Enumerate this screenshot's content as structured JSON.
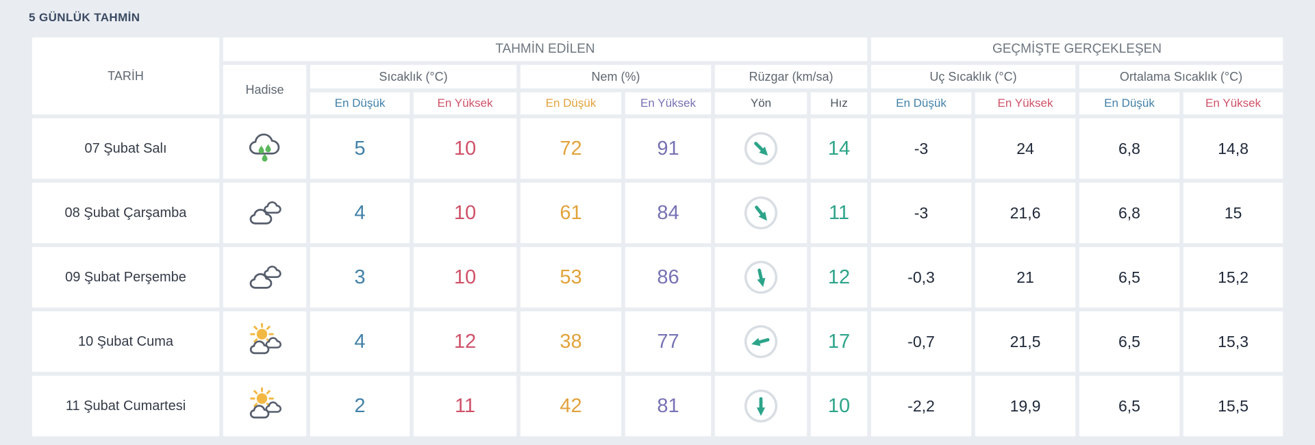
{
  "page": {
    "title": "5 GÜNLÜK TAHMİN",
    "background_color": "#e9edf2"
  },
  "table": {
    "headers": {
      "date": "TARİH",
      "predicted_group": "TAHMİN EDİLEN",
      "historical_group": "GEÇMİŞTE GERÇEKLEŞEN",
      "condition": "Hadise",
      "temperature": "Sıcaklık (°C)",
      "humidity": "Nem (%)",
      "wind": "Rüzgar (km/sa)",
      "extreme_temp": "Uç Sıcaklık (°C)",
      "average_temp": "Ortalama Sıcaklık (°C)",
      "min": "En Düşük",
      "max": "En Yüksek",
      "direction": "Yön",
      "speed": "Hız"
    },
    "colors": {
      "min_temp": "#4180a8",
      "max_temp": "#cf5168",
      "min_humidity": "#e2a23b",
      "max_humidity": "#7672b4",
      "wind_speed": "#2ca489",
      "historical_values": "#20293a",
      "title": "#3b4a63",
      "header_text": "#6d757f",
      "rain_drop": "#5cb85c",
      "sun": "#f3b844",
      "cloud_outline": "#565d6c",
      "arrow": "#2ca489",
      "arrow_circle": "#d9dee4"
    },
    "rows": [
      {
        "date": "07 Şubat Salı",
        "condition_icon": "rainy-icon",
        "temp_min": "5",
        "temp_max": "10",
        "humidity_min": "72",
        "humidity_max": "91",
        "wind_direction_icon": "arrow-down-right-icon",
        "wind_direction_deg": 135,
        "wind_speed": "14",
        "extreme_min": "-3",
        "extreme_max": "24",
        "avg_min": "6,8",
        "avg_max": "14,8"
      },
      {
        "date": "08 Şubat Çarşamba",
        "condition_icon": "cloudy-icon",
        "temp_min": "4",
        "temp_max": "10",
        "humidity_min": "61",
        "humidity_max": "84",
        "wind_direction_icon": "arrow-down-right-icon",
        "wind_direction_deg": 142,
        "wind_speed": "11",
        "extreme_min": "-3",
        "extreme_max": "21,6",
        "avg_min": "6,8",
        "avg_max": "15"
      },
      {
        "date": "09 Şubat Perşembe",
        "condition_icon": "cloudy-icon",
        "temp_min": "3",
        "temp_max": "10",
        "humidity_min": "53",
        "humidity_max": "86",
        "wind_direction_icon": "arrow-down-icon",
        "wind_direction_deg": 167,
        "wind_speed": "12",
        "extreme_min": "-0,3",
        "extreme_max": "21",
        "avg_min": "6,5",
        "avg_max": "15,2"
      },
      {
        "date": "10 Şubat Cuma",
        "condition_icon": "partly-sunny-icon",
        "temp_min": "4",
        "temp_max": "12",
        "humidity_min": "38",
        "humidity_max": "77",
        "wind_direction_icon": "arrow-left-icon",
        "wind_direction_deg": 255,
        "wind_speed": "17",
        "extreme_min": "-0,7",
        "extreme_max": "21,5",
        "avg_min": "6,5",
        "avg_max": "15,3"
      },
      {
        "date": "11 Şubat Cumartesi",
        "condition_icon": "partly-sunny-icon",
        "temp_min": "2",
        "temp_max": "11",
        "humidity_min": "42",
        "humidity_max": "81",
        "wind_direction_icon": "arrow-down-icon",
        "wind_direction_deg": 180,
        "wind_speed": "10",
        "extreme_min": "-2,2",
        "extreme_max": "19,9",
        "avg_min": "6,5",
        "avg_max": "15,5"
      }
    ]
  }
}
